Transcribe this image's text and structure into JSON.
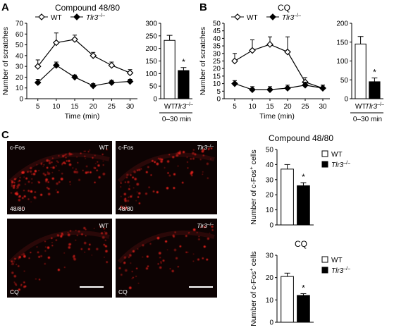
{
  "panels": {
    "A": {
      "letter": "A",
      "title": "Compound 48/80"
    },
    "B": {
      "letter": "B",
      "title": "CQ"
    },
    "C": {
      "letter": "C"
    }
  },
  "legend": {
    "wt": "WT",
    "ko_base": "Tlr3",
    "ko_sup": "–/–"
  },
  "colors": {
    "wt_fill": "#ffffff",
    "ko_fill": "#000000",
    "line": "#000000",
    "signal": "#e0201e",
    "background_tissue": "#0d0303"
  },
  "micrographs": [
    {
      "top_left": "c-Fos",
      "top_right_base": "WT",
      "top_right_sup": "",
      "bottom_left": "48/80",
      "scale_bar": false
    },
    {
      "top_left": "c-Fos",
      "top_right_base": "Tlr3",
      "top_right_sup": "–/–",
      "bottom_left": "48/80",
      "scale_bar": false
    },
    {
      "top_left": "",
      "top_right_base": "WT",
      "top_right_sup": "",
      "bottom_left": "CQ",
      "scale_bar": true
    },
    {
      "top_left": "",
      "top_right_base": "Tlr3",
      "top_right_sup": "–/–",
      "bottom_left": "CQ",
      "scale_bar": true
    }
  ],
  "chart_data": [
    {
      "id": "A-line",
      "type": "line",
      "panel": "A",
      "title": "Compound 48/80",
      "xlabel": "Time (min)",
      "ylabel": "Number of scratches",
      "x": [
        5,
        10,
        15,
        20,
        25,
        30
      ],
      "xlim": [
        2,
        32
      ],
      "ylim": [
        0,
        70
      ],
      "xticks": [
        5,
        10,
        15,
        20,
        25,
        30
      ],
      "yticks": [
        0,
        10,
        20,
        30,
        40,
        50,
        60,
        70
      ],
      "series": [
        {
          "name": "WT",
          "marker": "open-diamond",
          "values": [
            30,
            52,
            55,
            40,
            31,
            24
          ],
          "errors": [
            6,
            9,
            4,
            3,
            3,
            3
          ]
        },
        {
          "name": "Tlr3–/–",
          "marker": "filled-diamond",
          "values": [
            15,
            31,
            20,
            12,
            15,
            16
          ],
          "errors": [
            3,
            3,
            2,
            2,
            2,
            2
          ]
        }
      ]
    },
    {
      "id": "A-bar",
      "type": "bar",
      "panel": "A",
      "categories": [
        "WT",
        "Tlr3–/–"
      ],
      "values": [
        232,
        112
      ],
      "errors": [
        20,
        12
      ],
      "significance": [
        "",
        "*"
      ],
      "ylim": [
        0,
        300
      ],
      "yticks": [
        0,
        50,
        100,
        150,
        200,
        250,
        300
      ],
      "xlabel": "0–30 min"
    },
    {
      "id": "B-line",
      "type": "line",
      "panel": "B",
      "title": "CQ",
      "xlabel": "Time (min)",
      "ylabel": "Number of scratches",
      "x": [
        5,
        10,
        15,
        20,
        25,
        30
      ],
      "xlim": [
        2,
        32
      ],
      "ylim": [
        0,
        50
      ],
      "xticks": [
        5,
        10,
        15,
        20,
        25,
        30
      ],
      "yticks": [
        0,
        5,
        10,
        15,
        20,
        25,
        30,
        35,
        40,
        45,
        50
      ],
      "series": [
        {
          "name": "WT",
          "marker": "open-diamond",
          "values": [
            25,
            32,
            36,
            31,
            11,
            7
          ],
          "errors": [
            5,
            7,
            5,
            10,
            3,
            2
          ]
        },
        {
          "name": "Tlr3–/–",
          "marker": "filled-diamond",
          "values": [
            10,
            6,
            6,
            7,
            9,
            7
          ],
          "errors": [
            2,
            2,
            2,
            2,
            2,
            2
          ]
        }
      ]
    },
    {
      "id": "B-bar",
      "type": "bar",
      "panel": "B",
      "categories": [
        "WT",
        "Tlr3–/–"
      ],
      "values": [
        145,
        45
      ],
      "errors": [
        20,
        10
      ],
      "significance": [
        "",
        "*"
      ],
      "ylim": [
        0,
        200
      ],
      "yticks": [
        0,
        50,
        100,
        150,
        200
      ],
      "xlabel": "0–30 min"
    },
    {
      "id": "C-bar1",
      "type": "bar",
      "panel": "C",
      "title": "Compound 48/80",
      "ylabel": "Number of c-Fos+ cells",
      "ylabel_base": "Number of c-Fos",
      "ylabel_sup": "+",
      "ylabel_tail": " cells",
      "categories": [
        "WT",
        "Tlr3–/–"
      ],
      "values": [
        37,
        26
      ],
      "errors": [
        3,
        2
      ],
      "significance": [
        "",
        "*"
      ],
      "ylim": [
        0,
        50
      ],
      "yticks": [
        0,
        10,
        20,
        30,
        40,
        50
      ]
    },
    {
      "id": "C-bar2",
      "type": "bar",
      "panel": "C",
      "title": "CQ",
      "ylabel": "Number of c-Fos+ cells",
      "ylabel_base": "Number of c-Fos",
      "ylabel_sup": "+",
      "ylabel_tail": " cells",
      "categories": [
        "WT",
        "Tlr3–/–"
      ],
      "values": [
        20.5,
        12
      ],
      "errors": [
        1.5,
        0.8
      ],
      "significance": [
        "",
        "*"
      ],
      "ylim": [
        0,
        30
      ],
      "yticks": [
        0,
        10,
        20,
        30
      ]
    }
  ]
}
